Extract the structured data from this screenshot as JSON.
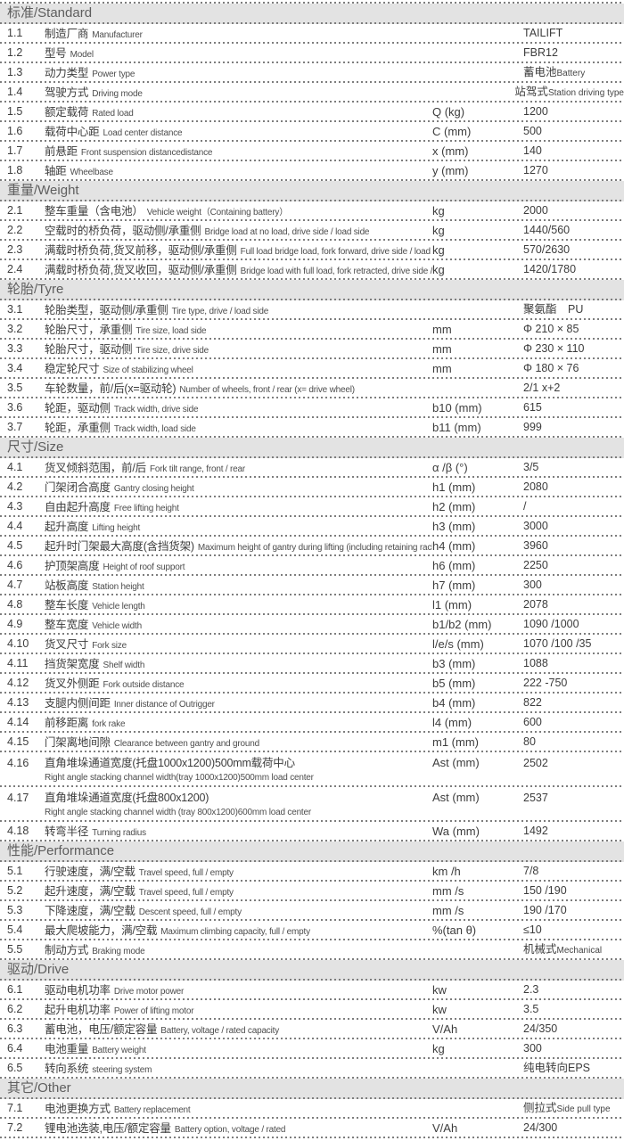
{
  "colors": {
    "page_background": "#ffffff",
    "section_bar_background": "#e3e3e3",
    "section_bar_text": "#5e5e5e",
    "row_text": "#3c3c3c",
    "sub_label_text": "#4d4d4d",
    "dotted_line": "#7d7d7d"
  },
  "table": {
    "sections": [
      {
        "title": "标准/Standard",
        "rows": [
          {
            "num": "1.1",
            "zh": "制造厂商",
            "en": "Manufacturer",
            "unit": "",
            "value": "TAILIFT",
            "value_en": ""
          },
          {
            "num": "1.2",
            "zh": "型号",
            "en": "Model",
            "unit": "",
            "value": "FBR12",
            "value_en": ""
          },
          {
            "num": "1.3",
            "zh": "动力类型",
            "en": "Power type",
            "unit": "",
            "value": "蓄电池",
            "value_en": "Battery"
          },
          {
            "num": "1.4",
            "zh": "驾驶方式",
            "en": "Driving mode",
            "unit": "",
            "value": "站驾式",
            "value_en": "Station driving type"
          },
          {
            "num": "1.5",
            "zh": "额定载荷",
            "en": "Rated load",
            "unit": "Q (kg)",
            "value": "1200",
            "value_en": ""
          },
          {
            "num": "1.6",
            "zh": "载荷中心距",
            "en": "Load center distance",
            "unit": "C (mm)",
            "value": "500",
            "value_en": ""
          },
          {
            "num": "1.7",
            "zh": "前悬距",
            "en": "Front suspension distancedistance",
            "unit": "x (mm)",
            "value": "140",
            "value_en": ""
          },
          {
            "num": "1.8",
            "zh": "轴距",
            "en": "Wheelbase",
            "unit": "y (mm)",
            "value": "1270",
            "value_en": ""
          }
        ]
      },
      {
        "title": "重量/Weight",
        "rows": [
          {
            "num": "2.1",
            "zh": "整车重量（含电池）",
            "en": "Vehicle weight（Containing battery）",
            "unit": "kg",
            "value": "2000",
            "value_en": ""
          },
          {
            "num": "2.2",
            "zh": "空载时的桥负荷，驱动侧/承重侧",
            "en": "Bridge load at no load, drive side / load side",
            "unit": "kg",
            "value": "1440/560",
            "value_en": ""
          },
          {
            "num": "2.3",
            "zh": "满载时桥负荷,货叉前移，驱动侧/承重侧",
            "en": "Full load bridge load, fork forward, drive side / load side",
            "unit": "kg",
            "value": "570/2630",
            "value_en": ""
          },
          {
            "num": "2.4",
            "zh": "满载时桥负荷,货叉收回，驱动侧/承重侧",
            "en": "Bridge load with full load, fork retracted, drive side / load side",
            "unit": "kg",
            "value": "1420/1780",
            "value_en": ""
          }
        ]
      },
      {
        "title": "轮胎/Tyre",
        "rows": [
          {
            "num": "3.1",
            "zh": "轮胎类型，驱动侧/承重侧",
            "en": "Tire type, drive / load side",
            "unit": "",
            "value": "聚氨酯　PU",
            "value_en": ""
          },
          {
            "num": "3.2",
            "zh": "轮胎尺寸，承重侧",
            "en": "Tire size, load side",
            "unit": "mm",
            "value": "Φ 210 × 85",
            "value_en": ""
          },
          {
            "num": "3.3",
            "zh": "轮胎尺寸，驱动侧",
            "en": "Tire size, drive side",
            "unit": "mm",
            "value": "Φ 230 × 110",
            "value_en": ""
          },
          {
            "num": "3.4",
            "zh": "稳定轮尺寸",
            "en": "Size of stabilizing wheel",
            "unit": "mm",
            "value": "Φ 180 × 76",
            "value_en": ""
          },
          {
            "num": "3.5",
            "zh": "车轮数量，前/后(x=驱动轮)",
            "en": "Number of wheels, front / rear (x= drive wheel)",
            "unit": "",
            "value": "2/1 x+2",
            "value_en": ""
          },
          {
            "num": "3.6",
            "zh": "轮距，驱动侧",
            "en": "Track width, drive side",
            "unit": "b10 (mm)",
            "value": "615",
            "value_en": ""
          },
          {
            "num": "3.7",
            "zh": "轮距，承重侧",
            "en": "Track width, load side",
            "unit": "b11 (mm)",
            "value": "999",
            "value_en": ""
          }
        ]
      },
      {
        "title": "尺寸/Size",
        "rows": [
          {
            "num": "4.1",
            "zh": "货叉倾斜范围，前/后",
            "en": "Fork tilt range, front / rear",
            "unit": "α /β (°)",
            "value": "3/5",
            "value_en": ""
          },
          {
            "num": "4.2",
            "zh": "门架闭合高度",
            "en": "Gantry closing height",
            "unit": "h1 (mm)",
            "value": "2080",
            "value_en": ""
          },
          {
            "num": "4.3",
            "zh": "自由起升高度",
            "en": "Free lifting height",
            "unit": "h2 (mm)",
            "value": "/",
            "value_en": ""
          },
          {
            "num": "4.4",
            "zh": "起升高度",
            "en": "Lifting height",
            "unit": "h3 (mm)",
            "value": "3000",
            "value_en": ""
          },
          {
            "num": "4.5",
            "zh": "起升时门架最大高度(含挡货架)",
            "en": "Maximum height of gantry during lifting (including retaining rack)",
            "unit": "h4 (mm)",
            "value": "3960",
            "value_en": ""
          },
          {
            "num": "4.6",
            "zh": "护顶架高度",
            "en": "Height of roof support",
            "unit": "h6 (mm)",
            "value": "2250",
            "value_en": ""
          },
          {
            "num": "4.7",
            "zh": "站板高度",
            "en": "Station height",
            "unit": "h7 (mm)",
            "value": "300",
            "value_en": ""
          },
          {
            "num": "4.8",
            "zh": "整车长度",
            "en": "Vehicle length",
            "unit": "l1 (mm)",
            "value": "2078",
            "value_en": ""
          },
          {
            "num": "4.9",
            "zh": "整车宽度",
            "en": "Vehicle width",
            "unit": "b1/b2 (mm)",
            "value": "1090 /1000",
            "value_en": ""
          },
          {
            "num": "4.10",
            "zh": "货叉尺寸",
            "en": "Fork size",
            "unit": "l/e/s (mm)",
            "value": "1070 /100 /35",
            "value_en": ""
          },
          {
            "num": "4.11",
            "zh": "挡货架宽度",
            "en": "Shelf width",
            "unit": "b3 (mm)",
            "value": "1088",
            "value_en": ""
          },
          {
            "num": "4.12",
            "zh": "货叉外侧距",
            "en": "Fork outside distance",
            "unit": "b5 (mm)",
            "value": "222 -750",
            "value_en": ""
          },
          {
            "num": "4.13",
            "zh": "支腿内侧间距",
            "en": "Inner distance of Outrigger",
            "unit": "b4 (mm)",
            "value": "822",
            "value_en": ""
          },
          {
            "num": "4.14",
            "zh": "前移距离",
            "en": "fork rake",
            "unit": "l4 (mm)",
            "value": "600",
            "value_en": ""
          },
          {
            "num": "4.15",
            "zh": "门架离地间隙",
            "en": "Clearance between gantry and ground",
            "unit": "m1 (mm)",
            "value": "80",
            "value_en": ""
          },
          {
            "num": "4.16",
            "zh": "直角堆垛通道宽度(托盘1000x1200)500mm载荷中心",
            "en": "Right angle stacking channel width(tray 1000x1200)500mm load center",
            "unit": "Ast (mm)",
            "value": "2502",
            "value_en": "",
            "stack": true
          },
          {
            "num": "4.17",
            "zh": "直角堆垛通道宽度(托盘800x1200)",
            "en": "Right angle stacking channel width (tray 800x1200)600mm load center",
            "unit": "Ast (mm)",
            "value": "2537",
            "value_en": "",
            "stack": true
          },
          {
            "num": "4.18",
            "zh": "转弯半径",
            "en": "Turning radius",
            "unit": "Wa (mm)",
            "value": "1492",
            "value_en": ""
          }
        ]
      },
      {
        "title": "性能/Performance",
        "rows": [
          {
            "num": "5.1",
            "zh": "行驶速度，满/空载",
            "en": "Travel speed, full / empty",
            "unit": "km /h",
            "value": "7/8",
            "value_en": ""
          },
          {
            "num": "5.2",
            "zh": "起升速度，满/空载",
            "en": "Travel speed, full / empty",
            "unit": "mm /s",
            "value": "150 /190",
            "value_en": ""
          },
          {
            "num": "5.3",
            "zh": "下降速度，满/空载",
            "en": "Descent speed, full / empty",
            "unit": "mm /s",
            "value": "190 /170",
            "value_en": ""
          },
          {
            "num": "5.4",
            "zh": "最大爬坡能力，满/空载",
            "en": "Maximum climbing capacity, full / empty",
            "unit": "%(tan θ)",
            "value": "≤10",
            "value_en": ""
          },
          {
            "num": "5.5",
            "zh": "制动方式",
            "en": "Braking mode",
            "unit": "",
            "value": "机械式",
            "value_en": "Mechanical"
          }
        ]
      },
      {
        "title": "驱动/Drive",
        "rows": [
          {
            "num": "6.1",
            "zh": "驱动电机功率",
            "en": "Drive motor power",
            "unit": "kw",
            "value": "2.3",
            "value_en": ""
          },
          {
            "num": "6.2",
            "zh": "起升电机功率",
            "en": "Power of lifting motor",
            "unit": "kw",
            "value": "3.5",
            "value_en": ""
          },
          {
            "num": "6.3",
            "zh": "蓄电池，电压/额定容量",
            "en": "Battery, voltage / rated capacity",
            "unit": "V/Ah",
            "value": "24/350",
            "value_en": ""
          },
          {
            "num": "6.4",
            "zh": "电池重量",
            "en": "Battery weight",
            "unit": "kg",
            "value": "300",
            "value_en": ""
          },
          {
            "num": "6.5",
            "zh": "转向系统",
            "en": "steering system",
            "unit": "",
            "value": "纯电转向EPS",
            "value_en": ""
          }
        ]
      },
      {
        "title": "其它/Other",
        "rows": [
          {
            "num": "7.1",
            "zh": "电池更换方式",
            "en": "Battery replacement",
            "unit": "",
            "value": "侧拉式",
            "value_en": "Side pull type"
          },
          {
            "num": "7.2",
            "zh": "锂电池选装,电压/额定容量",
            "en": "Battery option, voltage / rated",
            "unit": "V/Ah",
            "value": "24/300",
            "value_en": ""
          }
        ]
      }
    ]
  }
}
